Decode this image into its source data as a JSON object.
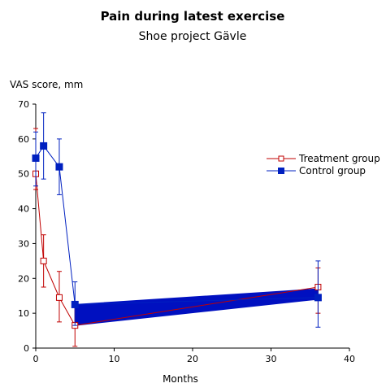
{
  "chart_data": {
    "type": "line",
    "title": "Pain during latest exercise",
    "subtitle": "Shoe project Gävle",
    "xlabel": "Months",
    "ylabel": "VAS score, mm",
    "xlim": [
      0,
      40
    ],
    "ylim": [
      0,
      70
    ],
    "x_ticks": [
      "0",
      "10",
      "20",
      "30",
      "40"
    ],
    "y_ticks": [
      "0",
      "10",
      "20",
      "30",
      "40",
      "50",
      "60",
      "70"
    ],
    "grid": false,
    "legend_position": "right",
    "series": [
      {
        "name": "Treatment group",
        "color": "#c00000",
        "marker": "open-square",
        "x": [
          0,
          1,
          3,
          5,
          36
        ],
        "y": [
          50,
          25,
          14.5,
          6.5,
          17.5
        ],
        "err_low": [
          45.5,
          17.5,
          7.5,
          0.5,
          10
        ],
        "err_high": [
          63,
          32.5,
          22,
          12,
          23
        ]
      },
      {
        "name": "Control group",
        "color": "#0020c0",
        "marker": "filled-square",
        "x": [
          0,
          1,
          3,
          5,
          36
        ],
        "y": [
          54.5,
          58,
          52,
          12.5,
          14.5
        ],
        "err_low": [
          46.5,
          48.5,
          44,
          6.5,
          6
        ],
        "err_high": [
          62,
          67.5,
          60,
          19,
          25
        ]
      }
    ],
    "shaded_band": {
      "color": "#0010c0",
      "x": [
        5,
        36
      ],
      "upper": [
        12.5,
        17
      ],
      "lower": [
        6.5,
        14
      ]
    }
  }
}
